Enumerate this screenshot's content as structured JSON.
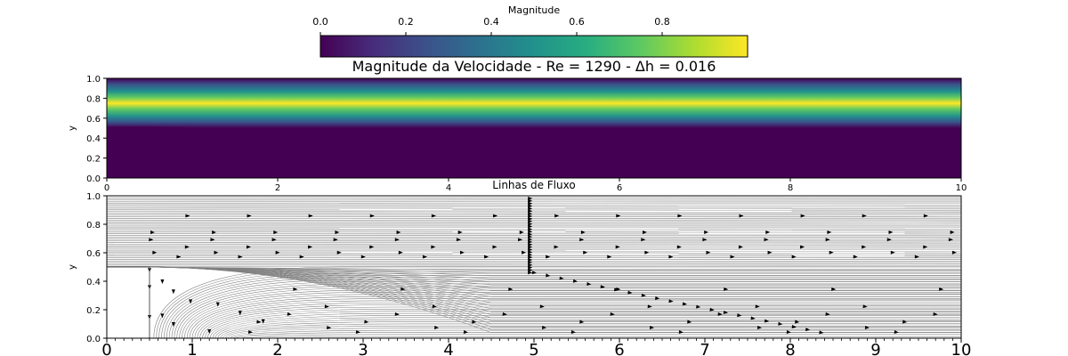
{
  "chart_data": [
    {
      "type": "heatmap",
      "title": "Magnitude da Velocidade - Re = 1290 - Δh = 0.016",
      "xlabel": "",
      "ylabel": "y",
      "xlim": [
        0,
        10
      ],
      "ylim": [
        0,
        1
      ],
      "xticks": [
        "0",
        "2",
        "4",
        "6",
        "8",
        "10"
      ],
      "yticks": [
        "0.0",
        "0.2",
        "0.4",
        "0.6",
        "0.8",
        "1.0"
      ],
      "colormap": "viridis",
      "step": {
        "x": 0.5,
        "y": 0.5
      },
      "jet_center": 0.75,
      "colorbar": {
        "label": "Magnitude",
        "range": [
          0,
          1
        ],
        "ticks": [
          "0.0",
          "0.2",
          "0.4",
          "0.6",
          "0.8"
        ],
        "location": "top"
      }
    },
    {
      "type": "streamplot",
      "title": "Linhas de Fluxo",
      "xlabel": "",
      "ylabel": "y",
      "xlim": [
        0,
        10
      ],
      "ylim": [
        0,
        1
      ],
      "xticks": [
        "0",
        "1",
        "2",
        "3",
        "4",
        "5",
        "6",
        "7",
        "8",
        "9",
        "10"
      ],
      "yticks": [
        "0.0",
        "0.2",
        "0.4",
        "0.6",
        "0.8",
        "1.0"
      ],
      "line_color": "#7f7f7f",
      "arrow_color": "#000000"
    }
  ]
}
